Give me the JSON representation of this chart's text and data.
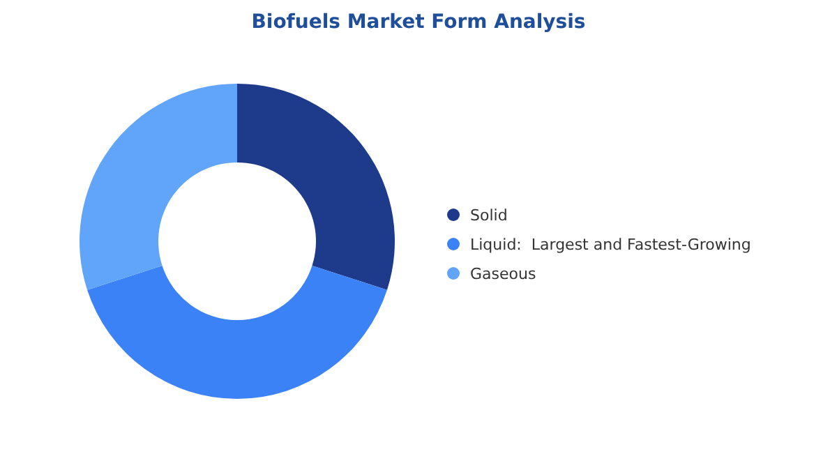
{
  "chart_data": {
    "type": "donut",
    "title": "Biofuels Market Form Analysis",
    "categories": [
      "Solid",
      "Liquid:  Largest and Fastest-Growing",
      "Gaseous"
    ],
    "values": [
      30,
      40,
      30
    ],
    "colors": [
      "#1e3a8a",
      "#3b82f6",
      "#60a5fa"
    ],
    "legend": "right"
  }
}
